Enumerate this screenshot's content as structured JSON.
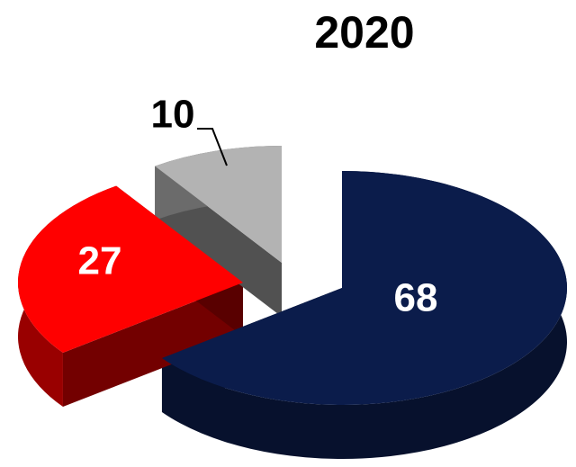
{
  "chart_data": {
    "type": "pie",
    "title": "2020",
    "slices": [
      {
        "label": "68",
        "value": 68,
        "color": "#0b1c4b"
      },
      {
        "label": "27",
        "value": 27,
        "color": "#ff0000"
      },
      {
        "label": "10",
        "value": 10,
        "color": "#b3b3b3"
      }
    ],
    "style": "3d-exploded",
    "legend": "none"
  }
}
